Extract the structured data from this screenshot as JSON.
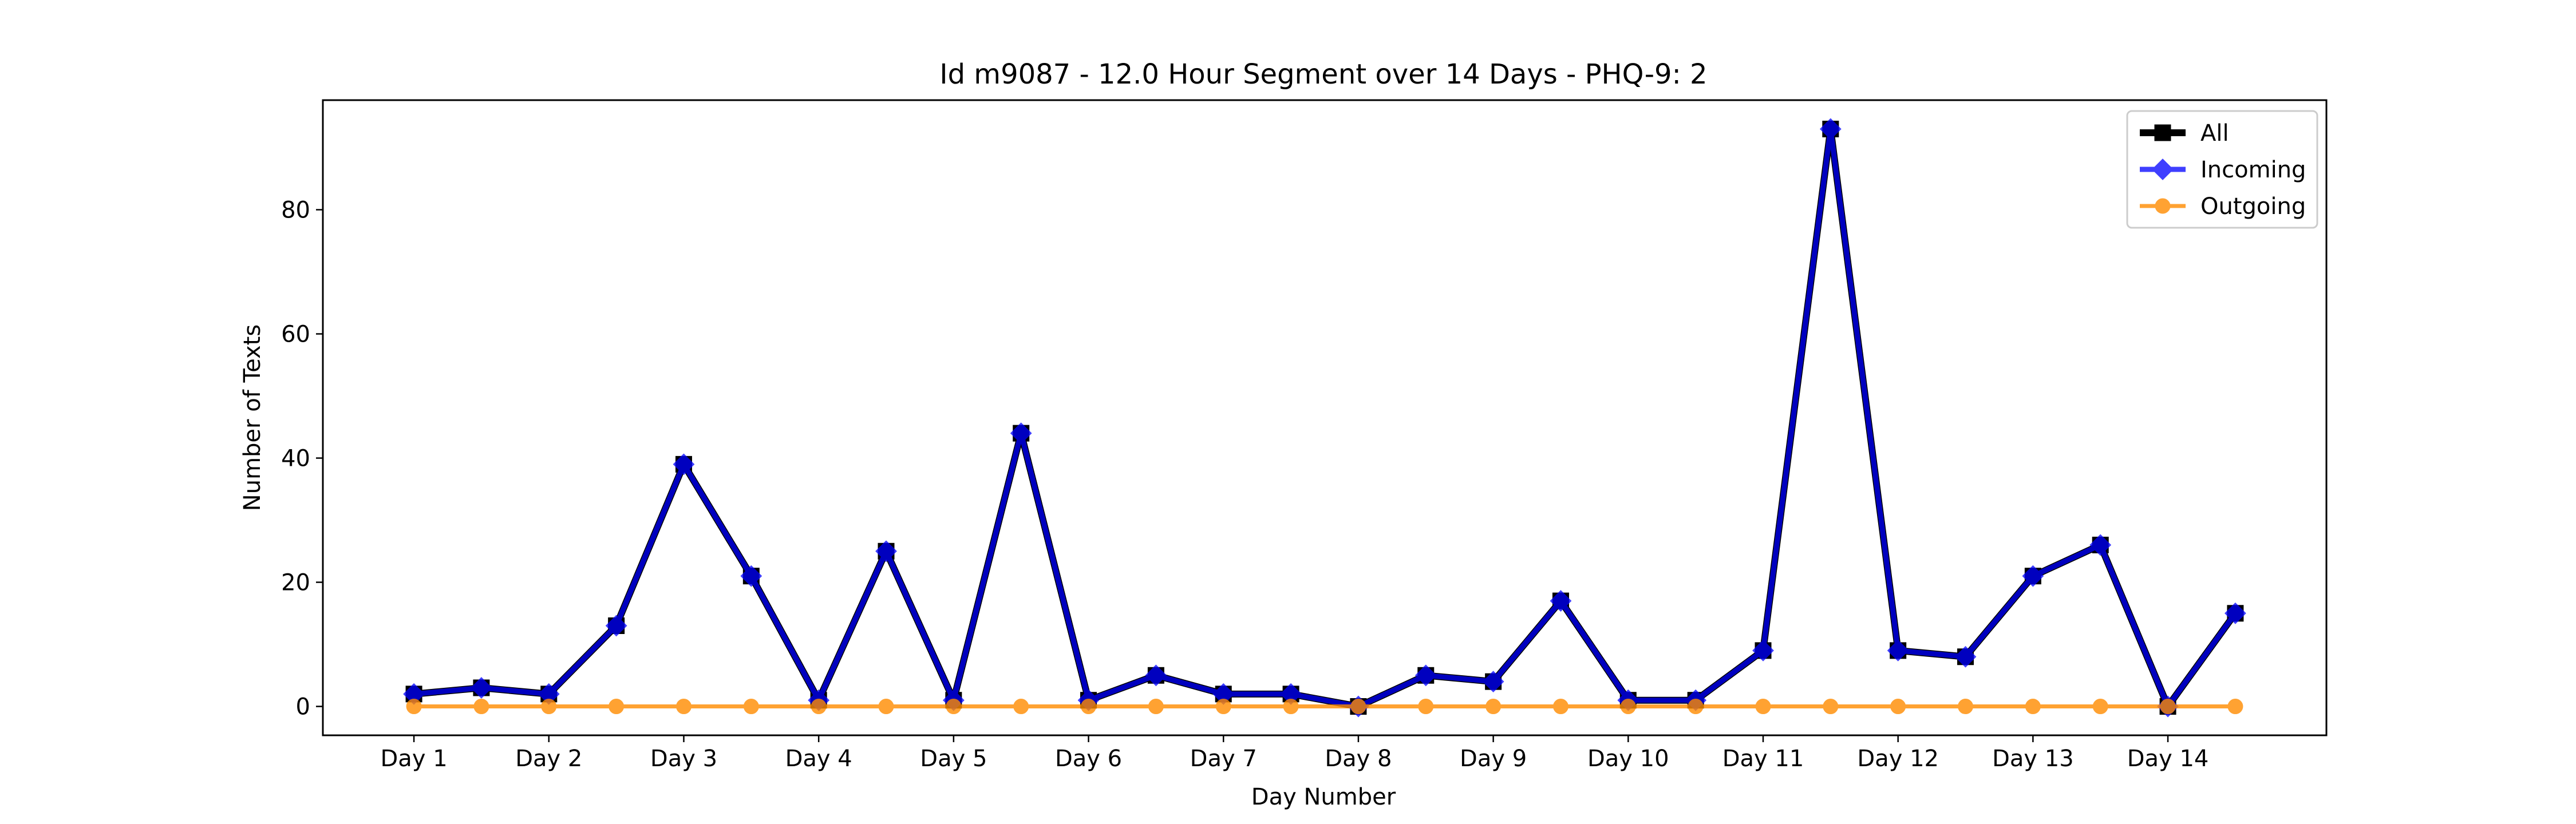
{
  "chart_data": {
    "type": "line",
    "title": "Id m9087 - 12.0 Hour Segment over 14 Days - PHQ-9: 2",
    "xlabel": "Day Number",
    "ylabel": "Number of Texts",
    "x_tick_labels": [
      "Day 1",
      "Day 2",
      "Day 3",
      "Day 4",
      "Day 5",
      "Day 6",
      "Day 7",
      "Day 8",
      "Day 9",
      "Day 10",
      "Day 11",
      "Day 12",
      "Day 13",
      "Day 14"
    ],
    "y_ticks": [
      0,
      20,
      40,
      60,
      80
    ],
    "ylim": [
      -4.65,
      97.65
    ],
    "segments_per_day": 2,
    "grid": false,
    "legend_position": "top-right",
    "series": [
      {
        "name": "All",
        "color": "#000000",
        "marker": "square",
        "values": [
          2,
          3,
          2,
          13,
          39,
          21,
          1,
          25,
          1,
          44,
          1,
          5,
          2,
          2,
          0,
          5,
          4,
          17,
          1,
          1,
          9,
          93,
          9,
          8,
          21,
          26,
          0,
          15
        ]
      },
      {
        "name": "Incoming",
        "color": "#0000ff",
        "marker": "diamond",
        "values": [
          2,
          3,
          2,
          13,
          39,
          21,
          1,
          25,
          1,
          44,
          1,
          5,
          2,
          2,
          0,
          5,
          4,
          17,
          1,
          1,
          9,
          93,
          9,
          8,
          21,
          26,
          0,
          15
        ]
      },
      {
        "name": "Outgoing",
        "color": "#ff8c00",
        "marker": "circle",
        "values": [
          0,
          0,
          0,
          0,
          0,
          0,
          0,
          0,
          0,
          0,
          0,
          0,
          0,
          0,
          0,
          0,
          0,
          0,
          0,
          0,
          0,
          0,
          0,
          0,
          0,
          0,
          0,
          0
        ]
      }
    ]
  }
}
